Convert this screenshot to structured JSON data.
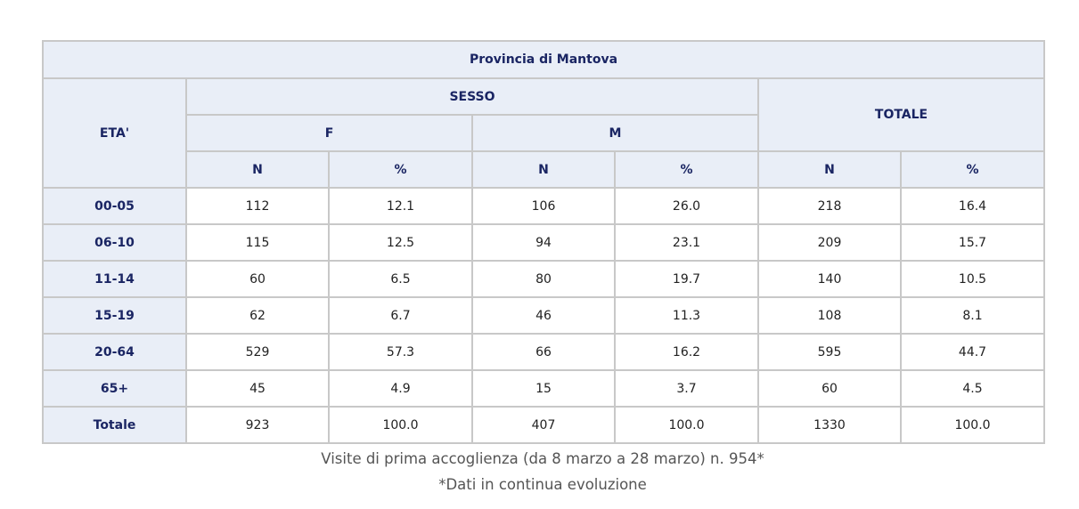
{
  "table": {
    "title": "Provincia di Mantova",
    "age_header": "ETA'",
    "sex_header": "SESSO",
    "total_header": "TOTALE",
    "f_header": "F",
    "m_header": "M",
    "subheaders": [
      "N",
      "%",
      "N",
      "%",
      "N",
      "%"
    ],
    "rows": [
      {
        "label": "00-05",
        "cells": [
          "112",
          "12.1",
          "106",
          "26.0",
          "218",
          "16.4"
        ]
      },
      {
        "label": "06-10",
        "cells": [
          "115",
          "12.5",
          "94",
          "23.1",
          "209",
          "15.7"
        ]
      },
      {
        "label": "11-14",
        "cells": [
          "60",
          "6.5",
          "80",
          "19.7",
          "140",
          "10.5"
        ]
      },
      {
        "label": "15-19",
        "cells": [
          "62",
          "6.7",
          "46",
          "11.3",
          "108",
          "8.1"
        ]
      },
      {
        "label": "20-64",
        "cells": [
          "529",
          "57.3",
          "66",
          "16.2",
          "595",
          "44.7"
        ]
      },
      {
        "label": "65+",
        "cells": [
          "45",
          "4.9",
          "15",
          "3.7",
          "60",
          "4.5"
        ]
      },
      {
        "label": "Totale",
        "cells": [
          "923",
          "100.0",
          "407",
          "100.0",
          "1330",
          "100.0"
        ]
      }
    ]
  },
  "caption": {
    "line1": "Visite di prima accoglienza (da 8 marzo a 28 marzo) n. 954*",
    "line2": "*Dati in continua evoluzione"
  },
  "colors": {
    "header_bg": "#e9eef7",
    "header_text": "#1a2563",
    "border": "#c8c8c8"
  }
}
